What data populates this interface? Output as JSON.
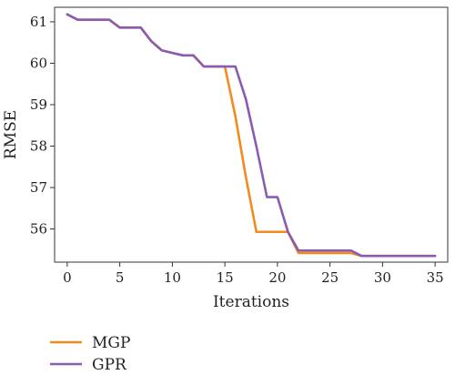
{
  "chart_data": {
    "type": "line",
    "title": "",
    "xlabel": "Iterations",
    "ylabel": "RMSE",
    "xlim": [
      -1.2,
      36.2
    ],
    "ylim": [
      55.2,
      61.35
    ],
    "xticks": [
      0,
      5,
      10,
      15,
      20,
      25,
      30,
      35
    ],
    "yticks": [
      56,
      57,
      58,
      59,
      60,
      61
    ],
    "grid": false,
    "legend_position": "bottom-left",
    "series": [
      {
        "name": "MGP",
        "color": "#F28A1E",
        "points": [
          [
            0,
            61.18
          ],
          [
            1,
            61.05
          ],
          [
            2,
            61.05
          ],
          [
            3,
            61.05
          ],
          [
            4,
            61.05
          ],
          [
            5,
            60.86
          ],
          [
            6,
            60.86
          ],
          [
            7,
            60.86
          ],
          [
            8,
            60.53
          ],
          [
            9,
            60.31
          ],
          [
            10,
            60.25
          ],
          [
            11,
            60.19
          ],
          [
            12,
            60.19
          ],
          [
            13,
            59.92
          ],
          [
            14,
            59.92
          ],
          [
            15,
            59.92
          ],
          [
            16,
            58.72
          ],
          [
            17,
            57.25
          ],
          [
            18,
            55.93
          ],
          [
            19,
            55.93
          ],
          [
            20,
            55.93
          ],
          [
            21,
            55.93
          ],
          [
            22,
            55.42
          ],
          [
            23,
            55.42
          ],
          [
            24,
            55.42
          ],
          [
            25,
            55.42
          ],
          [
            26,
            55.42
          ],
          [
            27,
            55.42
          ],
          [
            28,
            55.35
          ],
          [
            29,
            55.35
          ],
          [
            30,
            55.35
          ],
          [
            31,
            55.35
          ],
          [
            32,
            55.35
          ],
          [
            33,
            55.35
          ],
          [
            34,
            55.35
          ],
          [
            35,
            55.35
          ]
        ]
      },
      {
        "name": "GPR",
        "color": "#8A5BB0",
        "points": [
          [
            0,
            61.18
          ],
          [
            1,
            61.05
          ],
          [
            2,
            61.05
          ],
          [
            3,
            61.05
          ],
          [
            4,
            61.05
          ],
          [
            5,
            60.86
          ],
          [
            6,
            60.86
          ],
          [
            7,
            60.86
          ],
          [
            8,
            60.53
          ],
          [
            9,
            60.31
          ],
          [
            10,
            60.25
          ],
          [
            11,
            60.19
          ],
          [
            12,
            60.19
          ],
          [
            13,
            59.92
          ],
          [
            14,
            59.92
          ],
          [
            15,
            59.92
          ],
          [
            16,
            59.92
          ],
          [
            17,
            59.13
          ],
          [
            18,
            57.99
          ],
          [
            19,
            56.77
          ],
          [
            20,
            56.77
          ],
          [
            21,
            55.93
          ],
          [
            22,
            55.48
          ],
          [
            23,
            55.48
          ],
          [
            24,
            55.48
          ],
          [
            25,
            55.48
          ],
          [
            26,
            55.48
          ],
          [
            27,
            55.48
          ],
          [
            28,
            55.35
          ],
          [
            29,
            55.35
          ],
          [
            30,
            55.35
          ],
          [
            31,
            55.35
          ],
          [
            32,
            55.35
          ],
          [
            33,
            55.35
          ],
          [
            34,
            55.35
          ],
          [
            35,
            55.35
          ]
        ]
      }
    ]
  }
}
